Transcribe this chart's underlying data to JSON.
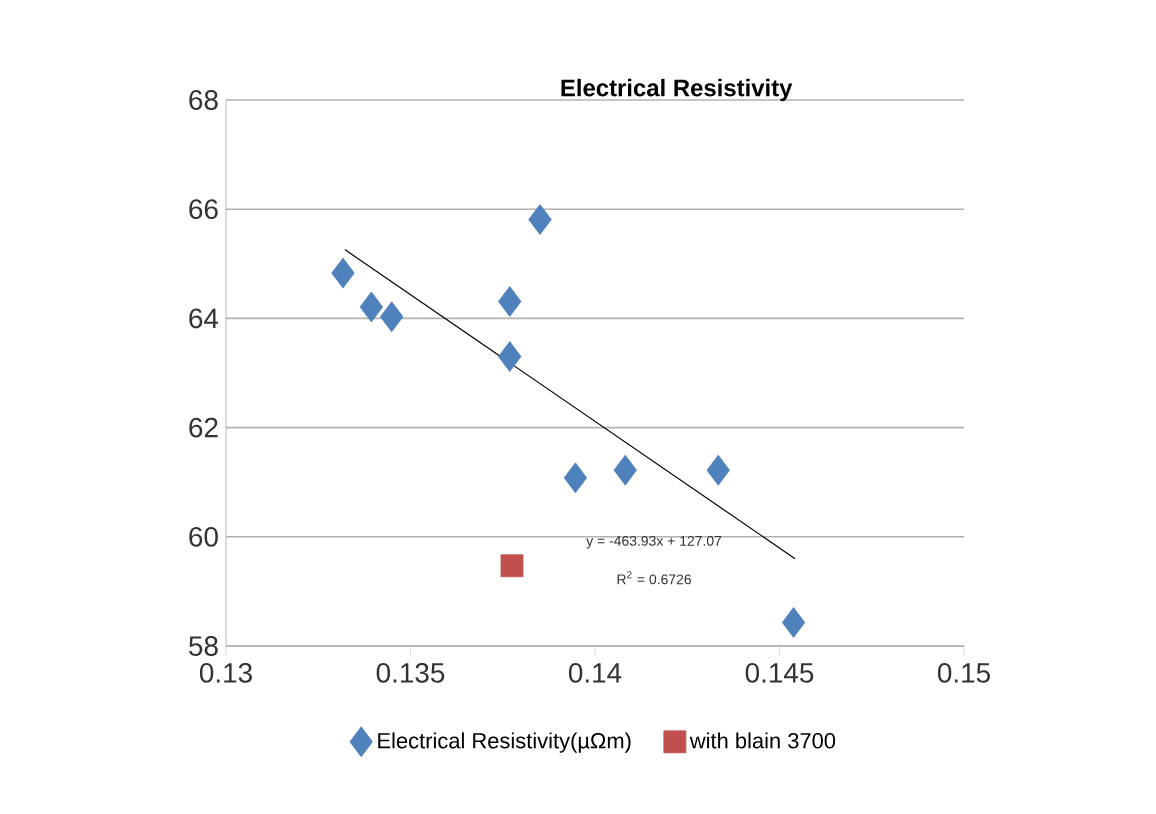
{
  "chart_data": {
    "type": "scatter",
    "title": "Electrical Resistivity",
    "xlim": [
      0.13,
      0.15
    ],
    "xticks": [
      0.13,
      0.135,
      0.14,
      0.145,
      0.15
    ],
    "ylim": [
      58,
      68
    ],
    "yticks": [
      58,
      60,
      62,
      64,
      66,
      68
    ],
    "grid": "y",
    "legend": "bottom",
    "series": [
      {
        "name": "Electrical Resistivity(µΩm)",
        "color": "#4f81bd",
        "marker": "diamond",
        "x": [
          0.13317,
          0.13394,
          0.13449,
          0.13769,
          0.13769,
          0.13851,
          0.13947,
          0.14082,
          0.14334,
          0.14538
        ],
        "values": [
          64.83,
          64.21,
          64.03,
          64.31,
          63.3,
          65.81,
          61.08,
          61.22,
          61.22,
          58.43
        ]
      },
      {
        "name": "with blain 3700",
        "color": "#c0504d",
        "marker": "square",
        "x": [
          0.13775
        ],
        "values": [
          59.47
        ]
      },
      {
        "type": "line",
        "color": "#000000",
        "x": [
          0.13322,
          0.14542
        ],
        "values": [
          65.26,
          59.6
        ]
      }
    ],
    "annotations": [
      "y = -463.93x + 127.07",
      "R$^{2}$ = 0.6726"
    ]
  }
}
